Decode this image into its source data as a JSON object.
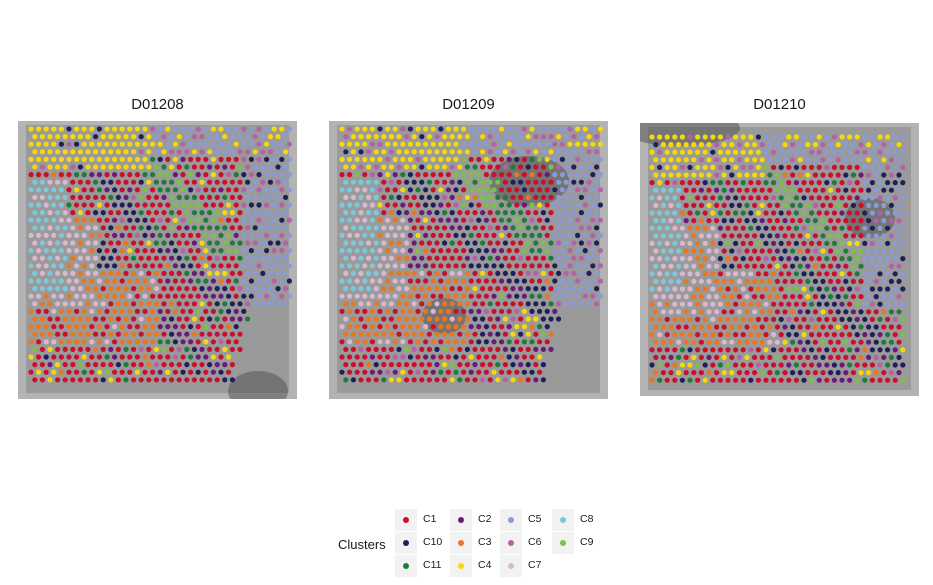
{
  "chart_data": [
    {
      "type": "scatter",
      "title": "D01208",
      "grid": false,
      "description_markers": "spatial spots colored by cluster over grey tissue image"
    },
    {
      "type": "scatter",
      "title": "D01209",
      "grid": false
    },
    {
      "type": "scatter",
      "title": "D01210",
      "grid": false
    }
  ],
  "legend": {
    "title": "Clusters",
    "placement": "bottom",
    "items": [
      {
        "label": "C1",
        "color": "#c8102e"
      },
      {
        "label": "C10",
        "color": "#1f1f5c"
      },
      {
        "label": "C11",
        "color": "#1e7b3a"
      },
      {
        "label": "C2",
        "color": "#6a1b7a"
      },
      {
        "label": "C3",
        "color": "#e87722"
      },
      {
        "label": "C4",
        "color": "#f5d90a"
      },
      {
        "label": "C5",
        "color": "#8b9bd6"
      },
      {
        "label": "C6",
        "color": "#b561a8"
      },
      {
        "label": "C7",
        "color": "#d9b8d0"
      },
      {
        "label": "C8",
        "color": "#7ec8dc"
      },
      {
        "label": "C9",
        "color": "#7cbf4a"
      }
    ]
  }
}
